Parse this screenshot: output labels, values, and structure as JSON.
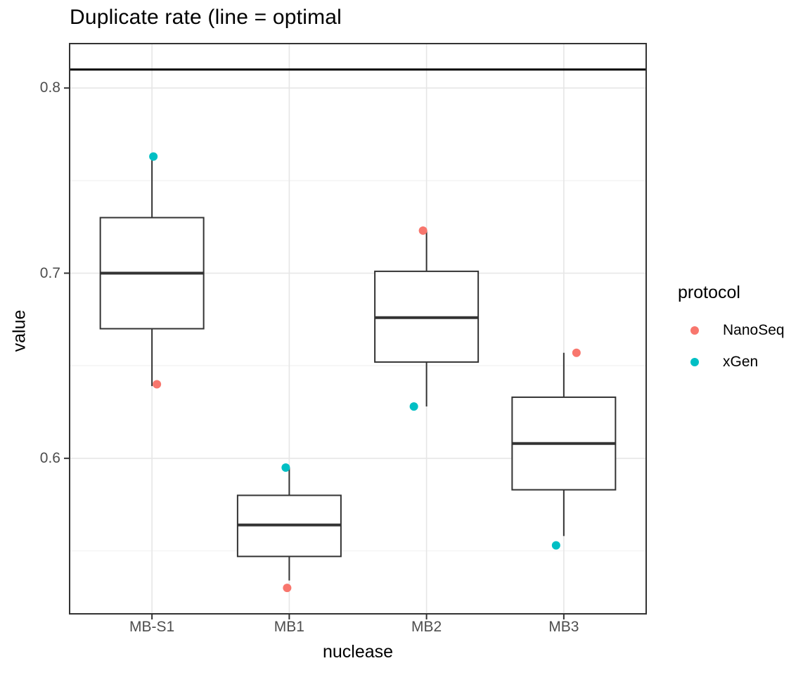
{
  "chart_data": {
    "type": "boxplot",
    "title": "Duplicate rate (line = optimal",
    "xlabel": "nuclease",
    "ylabel": "value",
    "categories": [
      "MB-S1",
      "MB1",
      "MB2",
      "MB3"
    ],
    "ylim": [
      0.516,
      0.824
    ],
    "y_ticks": [
      {
        "value": 0.8,
        "label": "0.8"
      },
      {
        "value": 0.7,
        "label": "0.7"
      },
      {
        "value": 0.6,
        "label": "0.6"
      }
    ],
    "y_minor_ticks": [
      0.75,
      0.65,
      0.55
    ],
    "reference_line": 0.81,
    "boxes": [
      {
        "category": "MB-S1",
        "whisker_low": 0.639,
        "q1": 0.67,
        "median": 0.7,
        "q3": 0.73,
        "whisker_high": 0.763
      },
      {
        "category": "MB1",
        "whisker_low": 0.534,
        "q1": 0.547,
        "median": 0.564,
        "q3": 0.58,
        "whisker_high": 0.595
      },
      {
        "category": "MB2",
        "whisker_low": 0.628,
        "q1": 0.652,
        "median": 0.676,
        "q3": 0.701,
        "whisker_high": 0.723
      },
      {
        "category": "MB3",
        "whisker_low": 0.558,
        "q1": 0.583,
        "median": 0.608,
        "q3": 0.633,
        "whisker_high": 0.657
      }
    ],
    "points": [
      {
        "category": "MB-S1",
        "protocol": "xGen",
        "value": 0.763,
        "x_offset": 2
      },
      {
        "category": "MB-S1",
        "protocol": "NanoSeq",
        "value": 0.64,
        "x_offset": 7
      },
      {
        "category": "MB1",
        "protocol": "xGen",
        "value": 0.595,
        "x_offset": -5
      },
      {
        "category": "MB1",
        "protocol": "NanoSeq",
        "value": 0.53,
        "x_offset": -3
      },
      {
        "category": "MB2",
        "protocol": "NanoSeq",
        "value": 0.723,
        "x_offset": -5
      },
      {
        "category": "MB2",
        "protocol": "xGen",
        "value": 0.628,
        "x_offset": -18
      },
      {
        "category": "MB3",
        "protocol": "NanoSeq",
        "value": 0.657,
        "x_offset": 18
      },
      {
        "category": "MB3",
        "protocol": "xGen",
        "value": 0.553,
        "x_offset": -11
      }
    ],
    "legend": {
      "title": "protocol",
      "entries": [
        {
          "label": "NanoSeq",
          "color": "#F8766D"
        },
        {
          "label": "xGen",
          "color": "#00BFC4"
        }
      ]
    },
    "colors": {
      "box_stroke": "#333333",
      "panel_border": "#333333",
      "reference_line": "#000000",
      "grid_major": "#e6e6e6",
      "grid_minor": "#f2f2f2",
      "axis_text": "#4d4d4d",
      "tick_mark": "#333333"
    },
    "legend_position": "right",
    "grid": true
  }
}
